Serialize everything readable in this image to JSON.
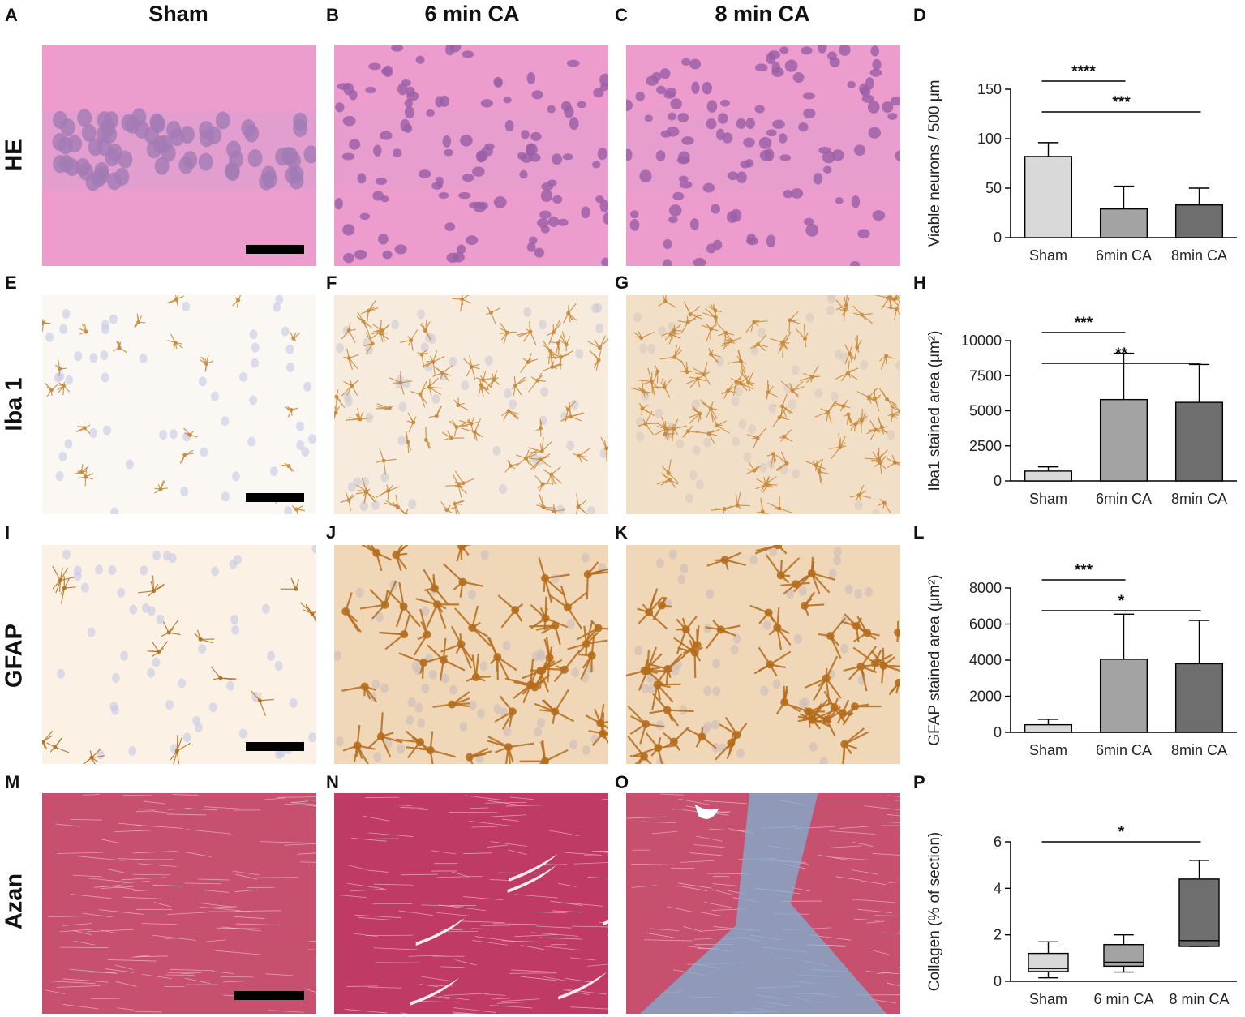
{
  "columns": [
    "Sham",
    "6 min CA",
    "8 min CA"
  ],
  "rows": [
    "HE",
    "Iba 1",
    "GFAP",
    "Azan"
  ],
  "panel_letters": [
    "A",
    "B",
    "C",
    "D",
    "E",
    "F",
    "G",
    "H",
    "I",
    "J",
    "K",
    "L",
    "M",
    "N",
    "O",
    "P"
  ],
  "stain_colors": {
    "he_bg": "#ec9ccd",
    "he_nuc": "#9a5fa6",
    "iba_bg": "#fbf7f2",
    "iba_cell": "#c98a3b",
    "iba_nuc": "#c7c9e6",
    "gfap_bg": "#fbf1e4",
    "gfap_cell": "#b56d1c",
    "azan_bg": "#c8506f",
    "azan_blue": "#7fb1d2"
  },
  "chart_data": [
    {
      "panel": "D",
      "type": "bar",
      "ylabel": "Viable neurons / 500 μm",
      "categories": [
        "Sham",
        "6min CA",
        "8min CA"
      ],
      "values": [
        82,
        29,
        33
      ],
      "errors": [
        14,
        23,
        17
      ],
      "ylim": [
        0,
        150
      ],
      "yticks": [
        "0",
        "50",
        "100",
        "150"
      ],
      "colors": [
        "#d9d9d9",
        "#a3a3a3",
        "#6e6e6e"
      ],
      "significance": [
        {
          "from": 0,
          "to": 1,
          "label": "****"
        },
        {
          "from": 0,
          "to": 2,
          "label": "***"
        }
      ]
    },
    {
      "panel": "H",
      "type": "bar",
      "ylabel": "Iba1 stained area (μm²)",
      "categories": [
        "Sham",
        "6min CA",
        "8min CA"
      ],
      "values": [
        700,
        5800,
        5600
      ],
      "errors": [
        300,
        3300,
        2700
      ],
      "ylim": [
        0,
        10000
      ],
      "yticks": [
        "0",
        "2500",
        "5000",
        "7500",
        "10000"
      ],
      "colors": [
        "#d9d9d9",
        "#a3a3a3",
        "#6e6e6e"
      ],
      "significance": [
        {
          "from": 0,
          "to": 1,
          "label": "***"
        },
        {
          "from": 0,
          "to": 2,
          "label": "**"
        }
      ]
    },
    {
      "panel": "L",
      "type": "bar",
      "ylabel": "GFAP stained area (μm²)",
      "categories": [
        "Sham",
        "6min CA",
        "8min CA"
      ],
      "values": [
        420,
        4050,
        3800
      ],
      "errors": [
        300,
        2500,
        2400
      ],
      "ylim": [
        0,
        8000
      ],
      "yticks": [
        "0",
        "2000",
        "4000",
        "6000",
        "8000"
      ],
      "colors": [
        "#d9d9d9",
        "#a3a3a3",
        "#6e6e6e"
      ],
      "significance": [
        {
          "from": 0,
          "to": 1,
          "label": "***"
        },
        {
          "from": 0,
          "to": 2,
          "label": "*"
        }
      ]
    },
    {
      "panel": "P",
      "type": "box",
      "ylabel": "Collagen (% of section)",
      "categories": [
        "Sham",
        "6 min CA",
        "8 min CA"
      ],
      "boxes": [
        {
          "min": 0.15,
          "q1": 0.42,
          "median": 0.55,
          "q3": 1.2,
          "max": 1.7
        },
        {
          "min": 0.4,
          "q1": 0.65,
          "median": 0.82,
          "q3": 1.58,
          "max": 2.0
        },
        {
          "min": 1.5,
          "q1": 1.5,
          "median": 1.75,
          "q3": 4.4,
          "max": 5.2
        }
      ],
      "ylim": [
        0,
        6
      ],
      "yticks": [
        "0",
        "2",
        "4",
        "6"
      ],
      "colors": [
        "#d9d9d9",
        "#a3a3a3",
        "#6e6e6e"
      ],
      "significance": [
        {
          "from": 0,
          "to": 2,
          "label": "*"
        }
      ]
    }
  ]
}
